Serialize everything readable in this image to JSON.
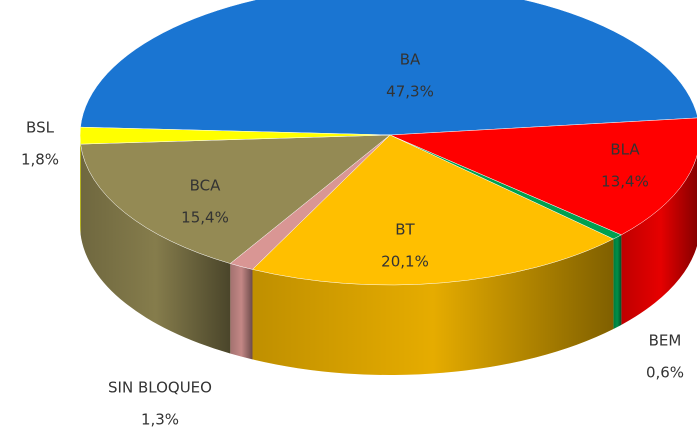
{
  "chart_data": {
    "type": "pie",
    "categories": [
      "BA",
      "BLA",
      "BEM",
      "BT",
      "SIN BLOQUEO",
      "BCA",
      "BSL"
    ],
    "values": [
      47.3,
      13.4,
      0.6,
      20.1,
      1.3,
      15.4,
      1.8
    ],
    "value_labels": [
      "47,3%",
      "13,4%",
      "0,6%",
      "20,1%",
      "1,3%",
      "15,4%",
      "1,8%"
    ],
    "colors": [
      "#1a75d2",
      "#ff0000",
      "#00a050",
      "#ffbf00",
      "#d99694",
      "#948a54",
      "#ffff00"
    ]
  }
}
